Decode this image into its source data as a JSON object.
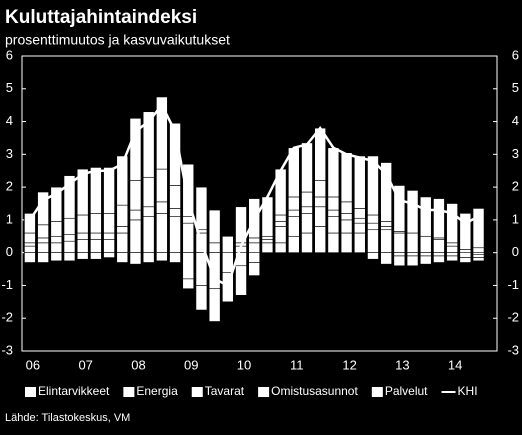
{
  "chart_data": {
    "type": "bar",
    "title": "Kuluttajahintaindeksi",
    "subtitle": "prosenttimuutos ja kasvuvaikutukset",
    "stacked": true,
    "categories": [
      "06",
      null,
      null,
      null,
      "07",
      null,
      null,
      null,
      "08",
      null,
      null,
      null,
      "09",
      null,
      null,
      null,
      "10",
      null,
      null,
      null,
      "11",
      null,
      null,
      null,
      "12",
      null,
      null,
      null,
      "13",
      null,
      null,
      null,
      "14",
      null,
      null
    ],
    "series": [
      {
        "name": "Elintarvikkeet",
        "color": "#ffffff",
        "values": [
          0.2,
          0.3,
          0.3,
          0.35,
          0.4,
          0.4,
          0.4,
          0.6,
          1.0,
          1.1,
          1.2,
          1.1,
          0.9,
          0.6,
          0.3,
          0.0,
          -0.4,
          -0.3,
          0.0,
          0.3,
          0.5,
          0.6,
          0.8,
          0.6,
          0.6,
          0.6,
          0.7,
          0.7,
          0.6,
          0.6,
          0.5,
          0.4,
          0.2,
          0.0,
          -0.05
        ]
      },
      {
        "name": "Energia",
        "color": "#ffffff",
        "values": [
          -0.3,
          -0.3,
          -0.25,
          -0.25,
          -0.2,
          -0.2,
          -0.15,
          -0.3,
          -0.35,
          -0.3,
          -0.25,
          -0.3,
          -0.8,
          -1.0,
          -1.1,
          -0.6,
          0.2,
          0.3,
          0.3,
          0.5,
          0.6,
          0.6,
          0.6,
          0.5,
          0.4,
          0.3,
          0.2,
          0.1,
          -0.1,
          -0.1,
          -0.1,
          -0.1,
          -0.1,
          -0.15,
          -0.1
        ]
      },
      {
        "name": "Tavarat",
        "color": "#ffffff",
        "values": [
          0.1,
          0.15,
          0.2,
          0.2,
          0.2,
          0.2,
          0.2,
          0.2,
          0.3,
          0.3,
          0.35,
          0.25,
          0.2,
          0.1,
          0.0,
          0.0,
          0.1,
          0.15,
          0.1,
          0.15,
          0.2,
          0.2,
          0.3,
          0.2,
          0.2,
          0.15,
          -0.2,
          -0.35,
          -0.3,
          -0.3,
          -0.25,
          -0.2,
          -0.15,
          -0.15,
          -0.1
        ]
      },
      {
        "name": "Omistusasunnot",
        "color": "#ffffff",
        "values": [
          0.3,
          0.4,
          0.45,
          0.5,
          0.55,
          0.6,
          0.6,
          0.65,
          0.9,
          0.9,
          1.0,
          0.7,
          -0.3,
          -0.75,
          -1.0,
          -0.9,
          -0.9,
          -0.4,
          0.1,
          0.2,
          0.4,
          0.45,
          0.5,
          0.4,
          0.35,
          0.3,
          0.25,
          0.15,
          0.05,
          0.0,
          0.0,
          0.05,
          0.1,
          0.1,
          0.15
        ]
      },
      {
        "name": "Palvelut",
        "color": "#ffffff",
        "values": [
          0.6,
          1.0,
          1.05,
          1.3,
          1.4,
          1.4,
          1.4,
          1.5,
          1.9,
          2.0,
          2.2,
          1.9,
          1.6,
          1.3,
          1.0,
          0.5,
          1.1,
          1.2,
          1.2,
          1.4,
          1.5,
          1.5,
          1.6,
          1.5,
          1.5,
          1.6,
          1.8,
          1.8,
          1.4,
          1.3,
          1.2,
          1.2,
          1.2,
          1.1,
          1.2
        ]
      },
      {
        "name": "KHI",
        "type": "line",
        "color": "#ffffff",
        "values": [
          1.0,
          1.6,
          1.8,
          2.1,
          2.4,
          2.5,
          2.5,
          2.7,
          3.7,
          4.0,
          4.5,
          3.7,
          1.6,
          0.3,
          -0.8,
          -1.0,
          0.2,
          1.0,
          1.7,
          2.5,
          3.2,
          3.3,
          3.8,
          3.2,
          3.0,
          2.9,
          2.8,
          2.4,
          1.6,
          1.5,
          1.3,
          1.3,
          1.2,
          0.9,
          1.1
        ]
      }
    ],
    "ylim": [
      -3,
      6
    ],
    "yticks": [
      -3,
      -2,
      -1,
      0,
      1,
      2,
      3,
      4,
      5,
      6
    ],
    "source": "Lähde: Tilastokeskus, VM"
  }
}
